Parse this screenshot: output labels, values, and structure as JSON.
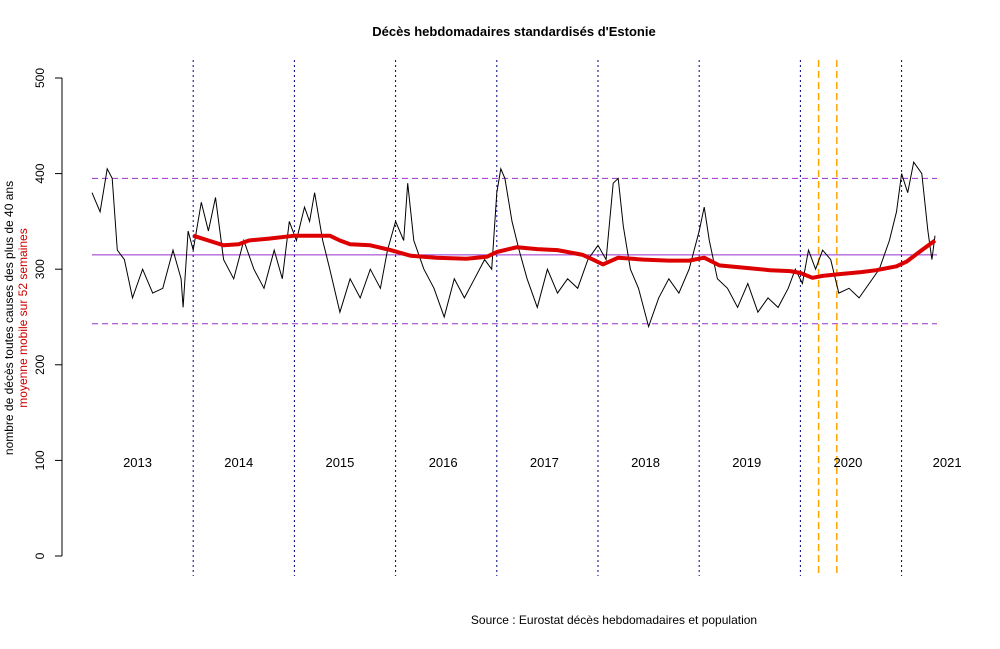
{
  "chart_data": {
    "type": "line",
    "title": "Décès hebdomadaires standardisés d'Estonie",
    "ylabel": "nombre de décès toutes causes des plus de 40 ans",
    "ylabel2": "moyenne mobile sur 52 semaines",
    "source": "Source : Eurostat décès hebdomadaires et population",
    "ylim": [
      0,
      500
    ],
    "yticks": [
      0,
      100,
      200,
      300,
      400,
      500
    ],
    "xlim": [
      2013.0,
      2021.35
    ],
    "year_labels": [
      {
        "label": "2013",
        "x": 2013.45
      },
      {
        "label": "2014",
        "x": 2014.45
      },
      {
        "label": "2015",
        "x": 2015.45
      },
      {
        "label": "2016",
        "x": 2016.47
      },
      {
        "label": "2017",
        "x": 2017.47
      },
      {
        "label": "2018",
        "x": 2018.47
      },
      {
        "label": "2019",
        "x": 2019.47
      },
      {
        "label": "2020",
        "x": 2020.47
      },
      {
        "label": "2021",
        "x": 2021.45
      }
    ],
    "year_boundaries": [
      2014.0,
      2015.0,
      2016.0,
      2017.0,
      2018.0,
      2019.0,
      2020.0,
      2021.0
    ],
    "covid_lines": [
      2020.18,
      2020.36
    ],
    "hlines": {
      "mean": 315,
      "upper": 395,
      "lower": 243
    },
    "colors": {
      "weekly": "#000000",
      "moving_avg": "#dd0000",
      "year_lines": "#00008b",
      "covid": "#ffa500",
      "mean": "#9932cc",
      "band": "#9932cc"
    },
    "series": [
      {
        "name": "décès hebdomadaires",
        "points": [
          [
            2013.0,
            380
          ],
          [
            2013.08,
            360
          ],
          [
            2013.15,
            405
          ],
          [
            2013.2,
            395
          ],
          [
            2013.25,
            320
          ],
          [
            2013.32,
            310
          ],
          [
            2013.4,
            270
          ],
          [
            2013.5,
            300
          ],
          [
            2013.6,
            275
          ],
          [
            2013.7,
            280
          ],
          [
            2013.8,
            320
          ],
          [
            2013.88,
            290
          ],
          [
            2013.9,
            260
          ],
          [
            2013.95,
            340
          ],
          [
            2014.0,
            320
          ],
          [
            2014.08,
            370
          ],
          [
            2014.15,
            340
          ],
          [
            2014.22,
            375
          ],
          [
            2014.3,
            310
          ],
          [
            2014.4,
            290
          ],
          [
            2014.5,
            330
          ],
          [
            2014.6,
            300
          ],
          [
            2014.7,
            280
          ],
          [
            2014.8,
            320
          ],
          [
            2014.88,
            290
          ],
          [
            2014.95,
            350
          ],
          [
            2015.02,
            330
          ],
          [
            2015.1,
            365
          ],
          [
            2015.15,
            350
          ],
          [
            2015.2,
            380
          ],
          [
            2015.28,
            330
          ],
          [
            2015.35,
            300
          ],
          [
            2015.45,
            255
          ],
          [
            2015.55,
            290
          ],
          [
            2015.65,
            270
          ],
          [
            2015.75,
            300
          ],
          [
            2015.85,
            280
          ],
          [
            2015.92,
            320
          ],
          [
            2016.0,
            350
          ],
          [
            2016.08,
            330
          ],
          [
            2016.12,
            390
          ],
          [
            2016.18,
            330
          ],
          [
            2016.28,
            300
          ],
          [
            2016.38,
            280
          ],
          [
            2016.48,
            250
          ],
          [
            2016.58,
            290
          ],
          [
            2016.68,
            270
          ],
          [
            2016.78,
            290
          ],
          [
            2016.88,
            310
          ],
          [
            2016.95,
            300
          ],
          [
            2017.0,
            380
          ],
          [
            2017.04,
            405
          ],
          [
            2017.08,
            395
          ],
          [
            2017.15,
            350
          ],
          [
            2017.22,
            320
          ],
          [
            2017.3,
            290
          ],
          [
            2017.4,
            260
          ],
          [
            2017.5,
            300
          ],
          [
            2017.6,
            275
          ],
          [
            2017.7,
            290
          ],
          [
            2017.8,
            280
          ],
          [
            2017.9,
            310
          ],
          [
            2018.0,
            325
          ],
          [
            2018.08,
            310
          ],
          [
            2018.15,
            390
          ],
          [
            2018.2,
            395
          ],
          [
            2018.25,
            345
          ],
          [
            2018.32,
            300
          ],
          [
            2018.4,
            280
          ],
          [
            2018.5,
            240
          ],
          [
            2018.6,
            270
          ],
          [
            2018.7,
            290
          ],
          [
            2018.8,
            275
          ],
          [
            2018.9,
            300
          ],
          [
            2019.0,
            340
          ],
          [
            2019.05,
            365
          ],
          [
            2019.1,
            330
          ],
          [
            2019.18,
            290
          ],
          [
            2019.28,
            280
          ],
          [
            2019.38,
            260
          ],
          [
            2019.48,
            285
          ],
          [
            2019.58,
            255
          ],
          [
            2019.68,
            270
          ],
          [
            2019.78,
            260
          ],
          [
            2019.88,
            280
          ],
          [
            2019.95,
            300
          ],
          [
            2020.02,
            285
          ],
          [
            2020.08,
            320
          ],
          [
            2020.15,
            300
          ],
          [
            2020.22,
            320
          ],
          [
            2020.3,
            310
          ],
          [
            2020.38,
            275
          ],
          [
            2020.48,
            280
          ],
          [
            2020.58,
            270
          ],
          [
            2020.68,
            285
          ],
          [
            2020.78,
            300
          ],
          [
            2020.88,
            330
          ],
          [
            2020.95,
            360
          ],
          [
            2021.0,
            400
          ],
          [
            2021.06,
            380
          ],
          [
            2021.12,
            412
          ],
          [
            2021.2,
            400
          ],
          [
            2021.26,
            340
          ],
          [
            2021.3,
            310
          ],
          [
            2021.33,
            335
          ]
        ]
      },
      {
        "name": "moyenne mobile sur 52 semaines",
        "points": [
          [
            2014.0,
            335
          ],
          [
            2014.15,
            330
          ],
          [
            2014.3,
            325
          ],
          [
            2014.45,
            326
          ],
          [
            2014.55,
            330
          ],
          [
            2014.75,
            332
          ],
          [
            2015.0,
            335
          ],
          [
            2015.2,
            335
          ],
          [
            2015.35,
            335
          ],
          [
            2015.45,
            330
          ],
          [
            2015.55,
            326
          ],
          [
            2015.75,
            325
          ],
          [
            2015.95,
            320
          ],
          [
            2016.15,
            314
          ],
          [
            2016.4,
            312
          ],
          [
            2016.7,
            311
          ],
          [
            2016.9,
            313
          ],
          [
            2017.0,
            318
          ],
          [
            2017.2,
            323
          ],
          [
            2017.4,
            321
          ],
          [
            2017.6,
            320
          ],
          [
            2017.85,
            315
          ],
          [
            2017.95,
            310
          ],
          [
            2018.05,
            305
          ],
          [
            2018.2,
            312
          ],
          [
            2018.45,
            310
          ],
          [
            2018.7,
            309
          ],
          [
            2018.9,
            309
          ],
          [
            2019.05,
            312
          ],
          [
            2019.2,
            304
          ],
          [
            2019.5,
            301
          ],
          [
            2019.7,
            299
          ],
          [
            2019.9,
            298
          ],
          [
            2020.0,
            296
          ],
          [
            2020.12,
            291
          ],
          [
            2020.22,
            293
          ],
          [
            2020.4,
            295
          ],
          [
            2020.6,
            297
          ],
          [
            2020.75,
            299
          ],
          [
            2020.95,
            303
          ],
          [
            2021.05,
            308
          ],
          [
            2021.2,
            320
          ],
          [
            2021.33,
            330
          ]
        ]
      }
    ]
  }
}
